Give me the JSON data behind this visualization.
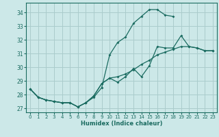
{
  "xlabel": "Humidex (Indice chaleur)",
  "bg_color": "#cce8e8",
  "grid_color": "#aacccc",
  "line_color": "#1a6b60",
  "xlim": [
    -0.5,
    23.5
  ],
  "ylim": [
    26.7,
    34.7
  ],
  "yticks": [
    27,
    28,
    29,
    30,
    31,
    32,
    33,
    34
  ],
  "xticks": [
    0,
    1,
    2,
    3,
    4,
    5,
    6,
    7,
    8,
    9,
    10,
    11,
    12,
    13,
    14,
    15,
    16,
    17,
    18,
    19,
    20,
    21,
    22,
    23
  ],
  "series": [
    {
      "x": [
        0,
        1,
        2,
        3,
        4,
        5,
        6,
        7,
        8,
        9,
        10,
        11,
        12,
        13,
        14,
        15,
        16,
        17,
        18
      ],
      "y": [
        28.4,
        27.8,
        27.6,
        27.5,
        27.4,
        27.4,
        27.1,
        27.4,
        27.8,
        28.5,
        30.9,
        31.8,
        32.2,
        33.2,
        33.7,
        34.2,
        34.2,
        33.8,
        33.7
      ]
    },
    {
      "x": [
        0,
        1,
        2,
        3,
        4,
        5,
        6,
        7,
        8,
        9,
        10,
        11,
        12,
        13,
        14,
        15,
        16,
        17,
        18,
        19,
        20,
        21,
        22,
        23
      ],
      "y": [
        28.4,
        27.8,
        27.6,
        27.5,
        27.4,
        27.4,
        27.1,
        27.4,
        27.9,
        28.8,
        29.2,
        28.9,
        29.3,
        29.9,
        29.3,
        30.1,
        31.5,
        31.4,
        31.4,
        32.3,
        31.5,
        31.4,
        31.2,
        31.2
      ]
    },
    {
      "x": [
        0,
        1,
        2,
        3,
        4,
        5,
        6,
        7,
        8,
        9,
        10,
        11,
        12,
        13,
        14,
        15,
        16,
        17,
        18,
        19,
        20,
        21,
        22,
        23
      ],
      "y": [
        28.4,
        27.8,
        27.6,
        27.5,
        27.4,
        27.4,
        27.1,
        27.4,
        27.9,
        28.8,
        29.2,
        29.3,
        29.5,
        29.8,
        30.2,
        30.5,
        30.9,
        31.1,
        31.3,
        31.5,
        31.5,
        31.4,
        31.2,
        31.2
      ]
    }
  ]
}
